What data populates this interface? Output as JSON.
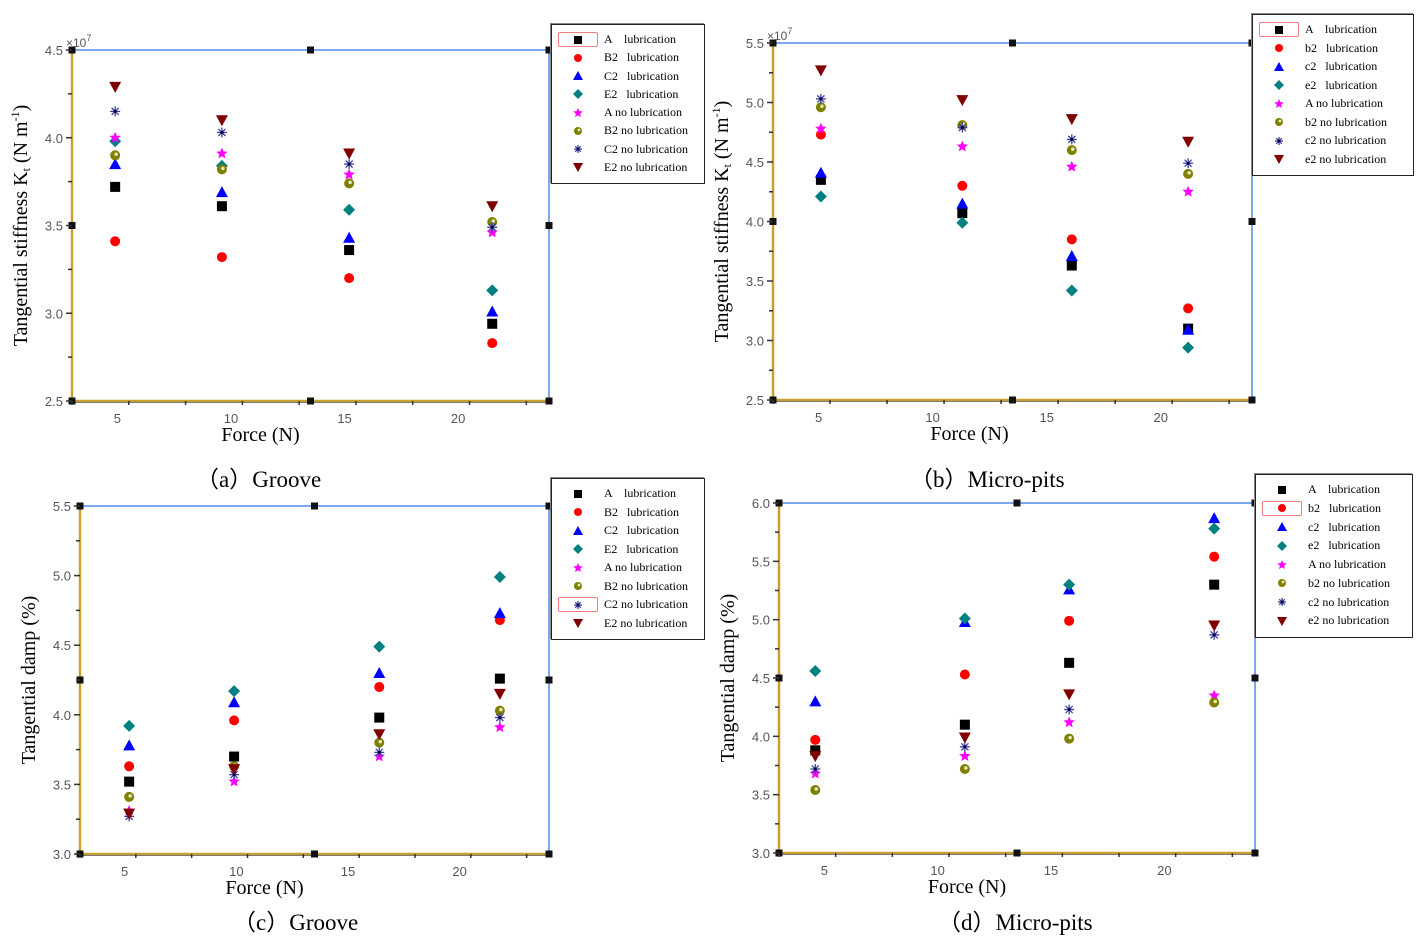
{
  "chart_data": [
    {
      "id": "a",
      "type": "scatter",
      "caption": "（a）Groove",
      "title": "",
      "xlabel": "Force (N)",
      "ylabel": "Tangential stiffness Kt (N m-1)",
      "ylabel_parts": {
        "main": "Tangential stiffness K",
        "sub": "t",
        "unit": " (N m",
        "sup": "-1",
        "close": ")"
      },
      "y_multiplier": "×10",
      "y_multiplier_exp": "7",
      "xlim": [
        3,
        24
      ],
      "ylim": [
        2.5,
        4.5
      ],
      "xticks": [
        5,
        10,
        15,
        20
      ],
      "yticks": [
        2.5,
        3.0,
        3.5,
        4.0,
        4.5
      ],
      "ytick_labels": [
        "2.5",
        "3.0",
        "3.5",
        "4.0",
        "4.5"
      ],
      "legend_position": "top-right-outside",
      "legend_highlight_index": 0,
      "series": [
        {
          "name": "A    lubrication",
          "marker": "square",
          "color": "#000000",
          "x": [
            4.9,
            9.6,
            15.2,
            21.5
          ],
          "y": [
            3.72,
            3.61,
            3.36,
            2.94
          ]
        },
        {
          "name": "B2   lubrication",
          "marker": "circle",
          "color": "#ff0000",
          "x": [
            4.9,
            9.6,
            15.2,
            21.5
          ],
          "y": [
            3.41,
            3.32,
            3.2,
            2.83
          ]
        },
        {
          "name": "C2   lubrication",
          "marker": "triangle-up",
          "color": "#0000ff",
          "x": [
            4.9,
            9.6,
            15.2,
            21.5
          ],
          "y": [
            3.85,
            3.69,
            3.43,
            3.01
          ]
        },
        {
          "name": "E2   lubrication",
          "marker": "diamond",
          "color": "#008080",
          "x": [
            4.9,
            9.6,
            15.2,
            21.5
          ],
          "y": [
            3.98,
            3.84,
            3.59,
            3.13
          ]
        },
        {
          "name": "A no lubrication",
          "marker": "star",
          "color": "#ff00ff",
          "x": [
            4.9,
            9.6,
            15.2,
            21.5
          ],
          "y": [
            4.0,
            3.91,
            3.79,
            3.46
          ]
        },
        {
          "name": "B2 no lubrication",
          "marker": "ring",
          "color": "#808000",
          "x": [
            4.9,
            9.6,
            15.2,
            21.5
          ],
          "y": [
            3.9,
            3.82,
            3.74,
            3.52
          ]
        },
        {
          "name": "C2 no lubrication",
          "marker": "asterisk",
          "color": "#4040a0",
          "x": [
            4.9,
            9.6,
            15.2,
            21.5
          ],
          "y": [
            4.15,
            4.03,
            3.85,
            3.49
          ]
        },
        {
          "name": "E2 no lubrication",
          "marker": "triangle-down",
          "color": "#800000",
          "x": [
            4.9,
            9.6,
            15.2,
            21.5
          ],
          "y": [
            4.29,
            4.1,
            3.91,
            3.61
          ]
        }
      ]
    },
    {
      "id": "b",
      "type": "scatter",
      "caption": "（b）Micro-pits",
      "title": "",
      "xlabel": "Force (N)",
      "ylabel": "Tangential stiffness Kt (N m-1)",
      "ylabel_parts": {
        "main": "Tangential stiffness K",
        "sub": "t",
        "unit": " (N m",
        "sup": "-1",
        "close": ")"
      },
      "y_multiplier": "×10",
      "y_multiplier_exp": "7",
      "xlim": [
        3,
        24
      ],
      "ylim": [
        2.5,
        5.5
      ],
      "xticks": [
        5,
        10,
        15,
        20
      ],
      "yticks": [
        2.5,
        3.0,
        3.5,
        4.0,
        4.5,
        5.0,
        5.5
      ],
      "ytick_labels": [
        "2.5",
        "3.0",
        "3.5",
        "4.0",
        "4.5",
        "5.0",
        "5.5"
      ],
      "legend_position": "top-right-outside",
      "legend_highlight_index": 0,
      "series": [
        {
          "name": "A    lubrication",
          "marker": "square",
          "color": "#000000",
          "x": [
            5.1,
            11.3,
            16.1,
            21.2
          ],
          "y": [
            4.35,
            4.07,
            3.63,
            3.1
          ]
        },
        {
          "name": "b2   lubrication",
          "marker": "circle",
          "color": "#ff0000",
          "x": [
            5.1,
            11.3,
            16.1,
            21.2
          ],
          "y": [
            4.73,
            4.3,
            3.85,
            3.27
          ]
        },
        {
          "name": "c2   lubrication",
          "marker": "triangle-up",
          "color": "#0000ff",
          "x": [
            5.1,
            11.3,
            16.1,
            21.2
          ],
          "y": [
            4.41,
            4.15,
            3.71,
            3.09
          ]
        },
        {
          "name": "e2   lubrication",
          "marker": "diamond",
          "color": "#008080",
          "x": [
            5.1,
            11.3,
            16.1,
            21.2
          ],
          "y": [
            4.21,
            3.99,
            3.42,
            2.94
          ]
        },
        {
          "name": "A no lubrication",
          "marker": "star",
          "color": "#ff00ff",
          "x": [
            5.1,
            11.3,
            16.1,
            21.2
          ],
          "y": [
            4.78,
            4.63,
            4.46,
            4.25
          ]
        },
        {
          "name": "b2 no lubrication",
          "marker": "ring",
          "color": "#808000",
          "x": [
            5.1,
            11.3,
            16.1,
            21.2
          ],
          "y": [
            4.96,
            4.81,
            4.6,
            4.4
          ]
        },
        {
          "name": "c2 no lubrication",
          "marker": "asterisk",
          "color": "#4040a0",
          "x": [
            5.1,
            11.3,
            16.1,
            21.2
          ],
          "y": [
            5.03,
            4.79,
            4.69,
            4.49
          ]
        },
        {
          "name": "e2 no lubrication",
          "marker": "triangle-down",
          "color": "#800000",
          "x": [
            5.1,
            11.3,
            16.1,
            21.2
          ],
          "y": [
            5.27,
            5.02,
            4.86,
            4.67
          ]
        }
      ]
    },
    {
      "id": "c",
      "type": "scatter",
      "caption": "（c）Groove",
      "title": "",
      "xlabel": "Force (N)",
      "ylabel": "Tangential damp (%)",
      "xlim": [
        3,
        24
      ],
      "ylim": [
        3.0,
        5.5
      ],
      "xticks": [
        5,
        10,
        15,
        20
      ],
      "yticks": [
        3.0,
        3.5,
        4.0,
        4.5,
        5.0,
        5.5
      ],
      "ytick_labels": [
        "3.0",
        "3.5",
        "4.0",
        "4.5",
        "5.0",
        "5.5"
      ],
      "legend_position": "top-right-outside",
      "legend_highlight_index": 6,
      "series": [
        {
          "name": "A    lubrication",
          "marker": "square",
          "color": "#000000",
          "x": [
            5.2,
            9.9,
            16.4,
            21.8
          ],
          "y": [
            3.52,
            3.7,
            3.98,
            4.26
          ]
        },
        {
          "name": "B2   lubrication",
          "marker": "circle",
          "color": "#ff0000",
          "x": [
            5.2,
            9.9,
            16.4,
            21.8
          ],
          "y": [
            3.63,
            3.96,
            4.2,
            4.68
          ]
        },
        {
          "name": "C2   lubrication",
          "marker": "triangle-up",
          "color": "#0000ff",
          "x": [
            5.2,
            9.9,
            16.4,
            21.8
          ],
          "y": [
            3.78,
            4.09,
            4.3,
            4.73
          ]
        },
        {
          "name": "E2   lubrication",
          "marker": "diamond",
          "color": "#008080",
          "x": [
            5.2,
            9.9,
            16.4,
            21.8
          ],
          "y": [
            3.92,
            4.17,
            4.49,
            4.99
          ]
        },
        {
          "name": "A no lubrication",
          "marker": "star",
          "color": "#ff00ff",
          "x": [
            5.2,
            9.9,
            16.4,
            21.8
          ],
          "y": [
            3.31,
            3.52,
            3.7,
            3.91
          ]
        },
        {
          "name": "B2 no lubrication",
          "marker": "ring",
          "color": "#808000",
          "x": [
            5.2,
            9.9,
            16.4,
            21.8
          ],
          "y": [
            3.41,
            3.63,
            3.8,
            4.03
          ]
        },
        {
          "name": "C2 no lubrication",
          "marker": "asterisk",
          "color": "#4040a0",
          "x": [
            5.2,
            9.9,
            16.4,
            21.8
          ],
          "y": [
            3.27,
            3.57,
            3.73,
            3.98
          ]
        },
        {
          "name": "E2 no lubrication",
          "marker": "triangle-down",
          "color": "#800000",
          "x": [
            5.2,
            9.9,
            16.4,
            21.8
          ],
          "y": [
            3.29,
            3.61,
            3.86,
            4.15
          ]
        }
      ]
    },
    {
      "id": "d",
      "type": "scatter",
      "caption": "（d）Micro-pits",
      "title": "",
      "xlabel": "Force (N)",
      "ylabel": "Tangential damp (%)",
      "xlim": [
        3,
        24
      ],
      "ylim": [
        3.0,
        6.0
      ],
      "xticks": [
        5,
        10,
        15,
        20
      ],
      "yticks": [
        3.0,
        3.5,
        4.0,
        4.5,
        5.0,
        5.5,
        6.0
      ],
      "ytick_labels": [
        "3.0",
        "3.5",
        "4.0",
        "4.5",
        "5.0",
        "5.5",
        "6.0"
      ],
      "legend_position": "top-right-outside",
      "legend_highlight_index": 1,
      "series": [
        {
          "name": "A    lubrication",
          "marker": "square",
          "color": "#000000",
          "x": [
            4.6,
            11.2,
            15.8,
            22.2
          ],
          "y": [
            3.88,
            4.1,
            4.63,
            5.3
          ]
        },
        {
          "name": "b2   lubrication",
          "marker": "circle",
          "color": "#ff0000",
          "x": [
            4.6,
            11.2,
            15.8,
            22.2
          ],
          "y": [
            3.97,
            4.53,
            4.99,
            5.54
          ]
        },
        {
          "name": "c2   lubrication",
          "marker": "triangle-up",
          "color": "#0000ff",
          "x": [
            4.6,
            11.2,
            15.8,
            22.2
          ],
          "y": [
            4.3,
            4.98,
            5.26,
            5.87
          ]
        },
        {
          "name": "e2   lubrication",
          "marker": "diamond",
          "color": "#008080",
          "x": [
            4.6,
            11.2,
            15.8,
            22.2
          ],
          "y": [
            4.56,
            5.01,
            5.3,
            5.78
          ]
        },
        {
          "name": "A no lubrication",
          "marker": "star",
          "color": "#ff00ff",
          "x": [
            4.6,
            11.2,
            15.8,
            22.2
          ],
          "y": [
            3.68,
            3.83,
            4.12,
            4.35
          ]
        },
        {
          "name": "b2 no lubrication",
          "marker": "ring",
          "color": "#808000",
          "x": [
            4.6,
            11.2,
            15.8,
            22.2
          ],
          "y": [
            3.54,
            3.72,
            3.98,
            4.29
          ]
        },
        {
          "name": "c2 no lubrication",
          "marker": "asterisk",
          "color": "#4040a0",
          "x": [
            4.6,
            11.2,
            15.8,
            22.2
          ],
          "y": [
            3.72,
            3.91,
            4.23,
            4.87
          ]
        },
        {
          "name": "e2 no lubrication",
          "marker": "triangle-down",
          "color": "#800000",
          "x": [
            4.6,
            11.2,
            15.8,
            22.2
          ],
          "y": [
            3.83,
            3.99,
            4.36,
            4.95
          ]
        }
      ]
    }
  ],
  "style": {
    "frame_top_color": "#7da7f0",
    "frame_left_color": "#c8a030",
    "frame_right_color": "#7da7f0",
    "frame_bottom_color": "#c8a030",
    "legend_highlight_color": "#f08080"
  }
}
